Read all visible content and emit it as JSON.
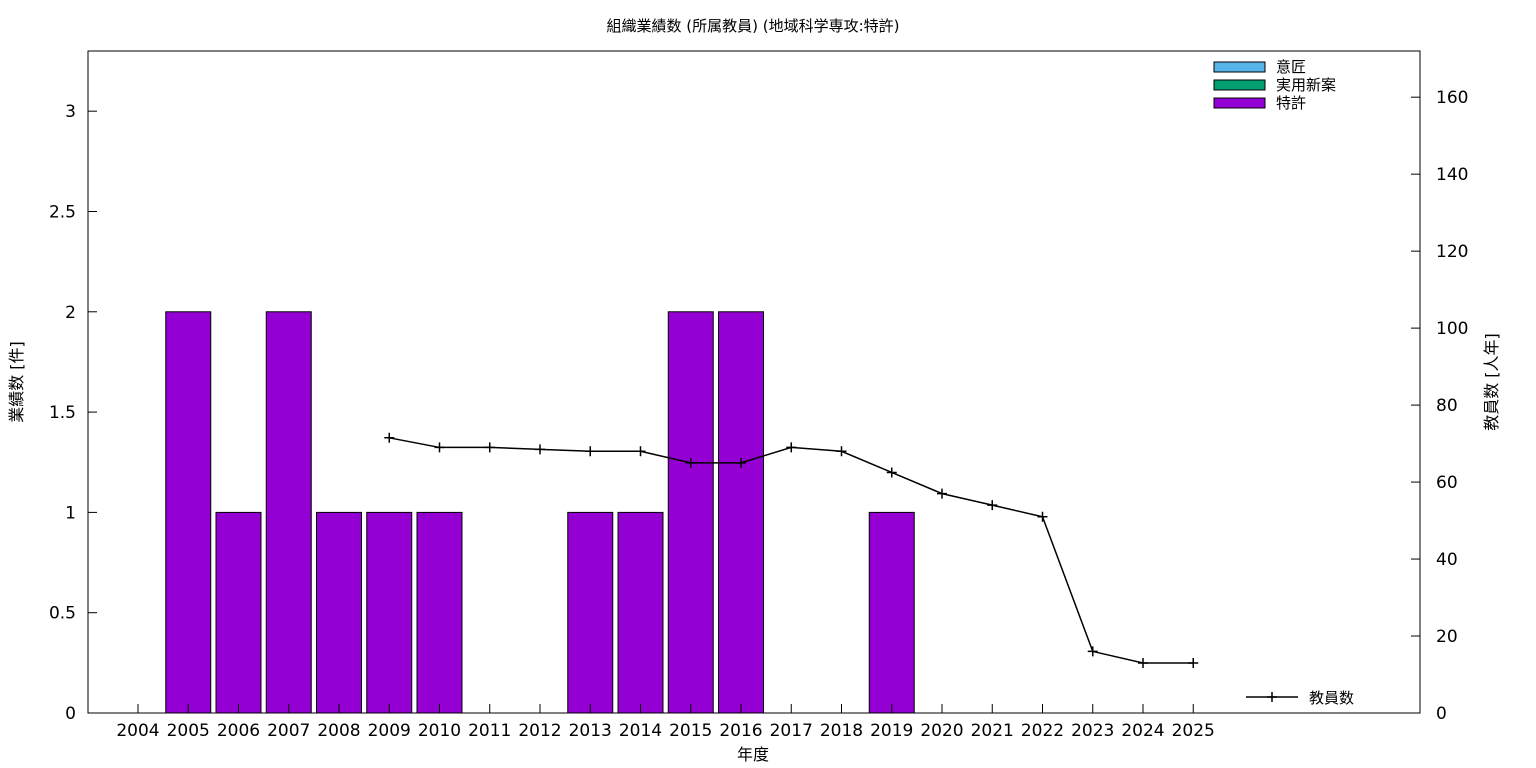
{
  "chart_data": {
    "type": "bar",
    "title": "組織業績数 (所属教員) (地域科学専攻:特許)",
    "xlabel": "年度",
    "ylabel": "業績数 [件]",
    "y2label": "教員数 [人年]",
    "categories": [
      "2004",
      "2005",
      "2006",
      "2007",
      "2008",
      "2009",
      "2010",
      "2011",
      "2012",
      "2013",
      "2014",
      "2015",
      "2016",
      "2017",
      "2018",
      "2019",
      "2020",
      "2021",
      "2022",
      "2023",
      "2024",
      "2025"
    ],
    "ylim": [
      0,
      3.3
    ],
    "yticks": [
      0,
      0.5,
      1,
      1.5,
      2,
      2.5,
      3
    ],
    "ytick_labels": [
      "0",
      "0.5",
      "1",
      "1.5",
      "2",
      "2.5",
      "3"
    ],
    "y2lim": [
      0,
      172
    ],
    "y2ticks": [
      0,
      20,
      40,
      60,
      80,
      100,
      120,
      140,
      160
    ],
    "grid": false,
    "legend_position": "top-right",
    "series": [
      {
        "name": "意匠",
        "kind": "bar",
        "color": "#56b4e9",
        "values": [
          0,
          0,
          0,
          0,
          0,
          0,
          0,
          0,
          0,
          0,
          0,
          0,
          0,
          0,
          0,
          0,
          0,
          0,
          0,
          0,
          0,
          0
        ]
      },
      {
        "name": "実用新案",
        "kind": "bar",
        "color": "#009e73",
        "values": [
          0,
          0,
          0,
          0,
          0,
          0,
          0,
          0,
          0,
          0,
          0,
          0,
          0,
          0,
          0,
          0,
          0,
          0,
          0,
          0,
          0,
          0
        ]
      },
      {
        "name": "特許",
        "kind": "bar",
        "color": "#9400d3",
        "values": [
          0,
          2,
          1,
          2,
          1,
          1,
          1,
          0,
          0,
          1,
          1,
          2,
          2,
          0,
          0,
          1,
          0,
          0,
          0,
          0,
          0,
          0
        ]
      },
      {
        "name": "教員数",
        "kind": "line",
        "axis": "y2",
        "color": "#000000",
        "values": [
          null,
          null,
          null,
          null,
          null,
          71.5,
          69,
          69,
          68.5,
          68,
          68,
          65,
          65,
          69,
          68,
          62.5,
          57,
          54,
          51,
          16,
          13,
          13
        ]
      }
    ]
  }
}
